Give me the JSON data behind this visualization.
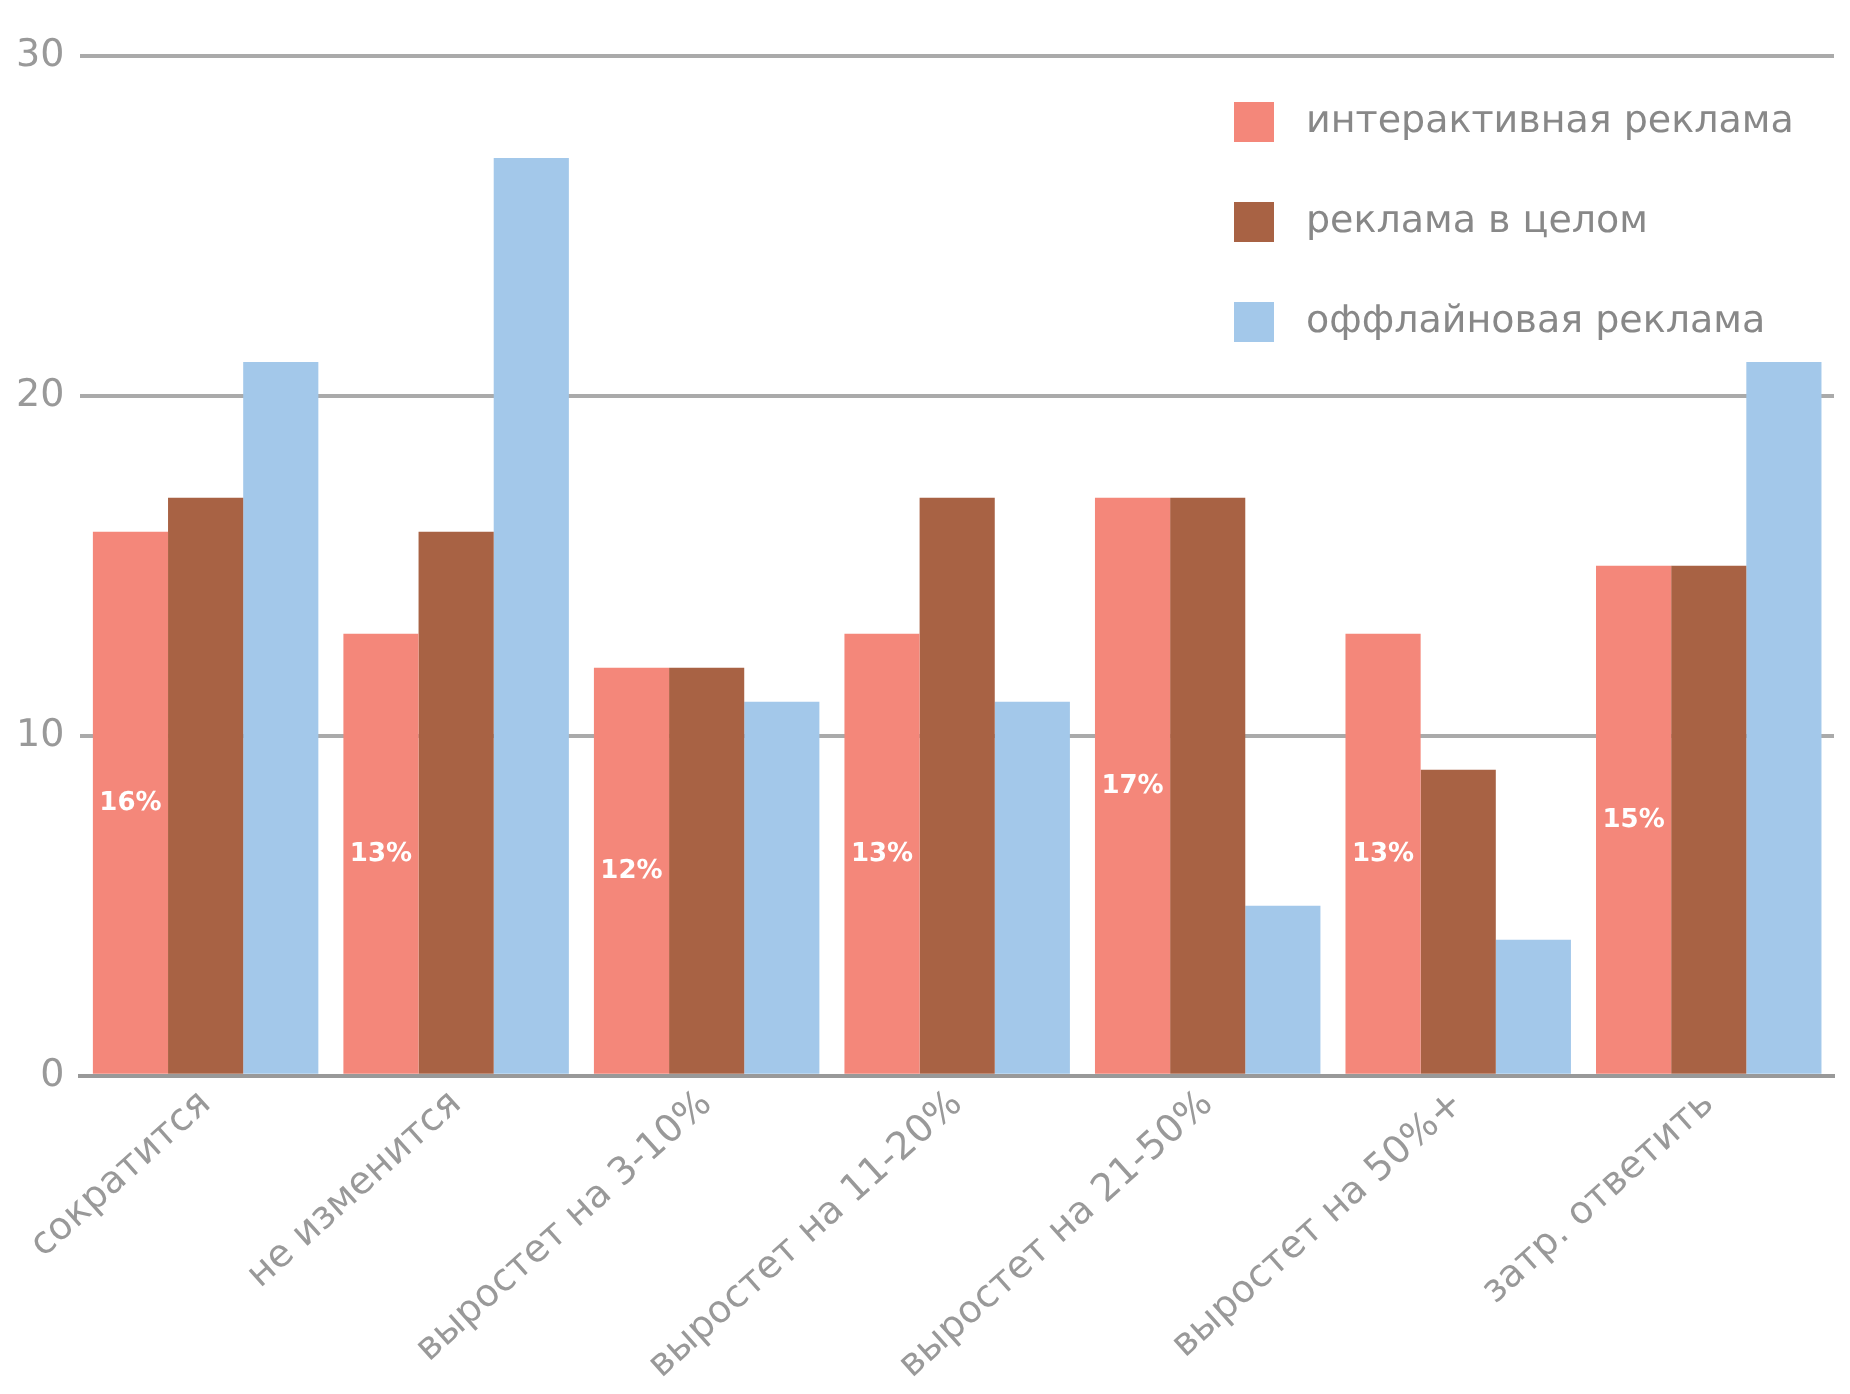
{
  "chart_data": {
    "type": "bar",
    "categories": [
      "сократится",
      "не изменится",
      "выростет на 3-10%",
      "выростет на 11-20%",
      "выростет на 21-50%",
      "выростет на 50%+",
      "затр. ответить"
    ],
    "series": [
      {
        "name": "интерактивная реклама",
        "color": "#f4877a",
        "values": [
          16,
          13,
          12,
          13,
          17,
          13,
          15
        ],
        "value_labels": [
          "16%",
          "13%",
          "12%",
          "13%",
          "17%",
          "13%",
          "15%"
        ]
      },
      {
        "name": "реклама в целом",
        "color": "#a86244",
        "values": [
          17,
          16,
          12,
          17,
          17,
          9,
          15
        ]
      },
      {
        "name": "оффлайновая реклама",
        "color": "#a3c8ea",
        "values": [
          21,
          27,
          11,
          11,
          5,
          4,
          21
        ]
      }
    ],
    "ylim": [
      0,
      30
    ],
    "yticks": [
      0,
      10,
      20,
      30
    ],
    "grid": "y",
    "legend": "top right"
  }
}
